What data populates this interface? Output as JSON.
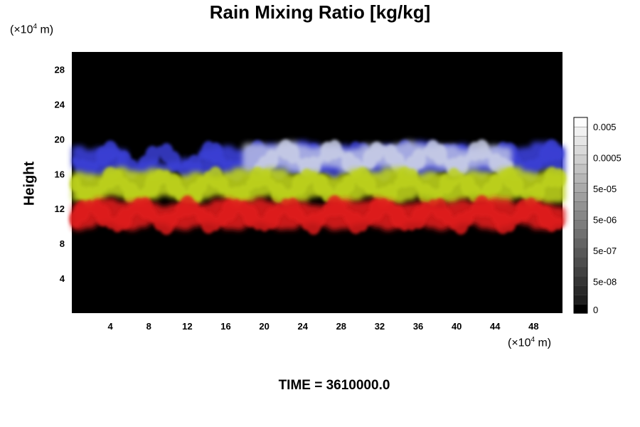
{
  "chart_data": {
    "type": "heatmap",
    "title": "Rain Mixing Ratio [kg/kg]",
    "ylabel": "Height",
    "y_unit_prefix": "(×10",
    "y_unit_exp": "4",
    "y_unit_suffix": " m)",
    "x_unit_prefix": "(×10",
    "x_unit_exp": "4",
    "x_unit_suffix": " m)",
    "xlim": [
      0,
      51
    ],
    "ylim": [
      0,
      30
    ],
    "x_ticks": [
      "4",
      "8",
      "12",
      "16",
      "20",
      "24",
      "28",
      "32",
      "36",
      "40",
      "44",
      "48"
    ],
    "y_ticks": [
      "4",
      "8",
      "12",
      "16",
      "20",
      "24",
      "28"
    ],
    "colorbar": {
      "labels": [
        "0",
        "5e-08",
        "5e-07",
        "5e-06",
        "5e-05",
        "0.0005",
        "0.005"
      ],
      "levels": 21
    },
    "layers": [
      {
        "color": "#3a3fd6",
        "y_bottom": 15.5,
        "y_top": 19.5
      },
      {
        "color": "#c8cde6",
        "y_bottom": 16.0,
        "y_top": 19.5
      },
      {
        "color": "#bdd21e",
        "y_bottom": 12.5,
        "y_top": 16.5
      },
      {
        "color": "#e01b1b",
        "y_bottom": 9.5,
        "y_top": 13.0
      }
    ],
    "footer": "TIME = 3610000.0"
  }
}
